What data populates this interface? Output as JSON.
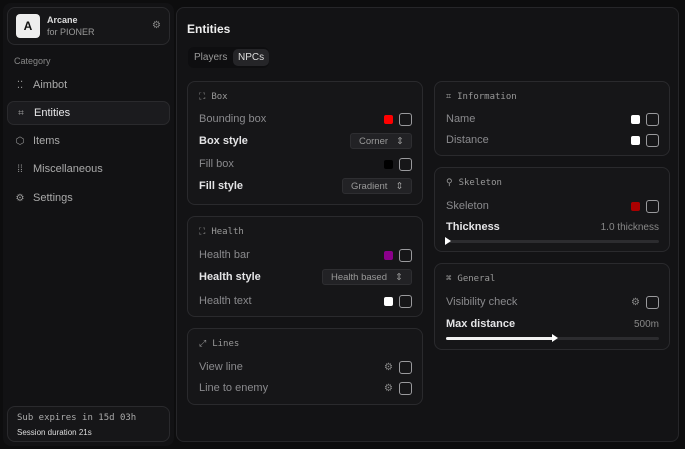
{
  "app": {
    "logo_letter": "A",
    "name": "Arcane",
    "subtitle": "for PIONER"
  },
  "sidebar": {
    "category_label": "Category",
    "items": [
      {
        "label": "Aimbot",
        "icon": "crosshair-icon",
        "active": false
      },
      {
        "label": "Entities",
        "icon": "entities-icon",
        "active": true
      },
      {
        "label": "Items",
        "icon": "cube-icon",
        "active": false
      },
      {
        "label": "Miscellaneous",
        "icon": "misc-icon",
        "active": false
      },
      {
        "label": "Settings",
        "icon": "gear-icon",
        "active": false
      }
    ]
  },
  "footer": {
    "sub": "Sub expires in 15d 03h",
    "session": "Session duration 21s"
  },
  "main": {
    "title": "Entities",
    "tabs": [
      {
        "label": "Players",
        "active": false
      },
      {
        "label": "NPCs",
        "active": true
      }
    ]
  },
  "box": {
    "title": "Box",
    "bounding_box": {
      "label": "Bounding box",
      "color": "#ff0000",
      "checked": false
    },
    "box_style": {
      "label": "Box style",
      "value": "Corner"
    },
    "fill_box": {
      "label": "Fill box",
      "color": "#000000",
      "checked": false
    },
    "fill_style": {
      "label": "Fill style",
      "value": "Gradient"
    }
  },
  "health": {
    "title": "Health",
    "health_bar": {
      "label": "Health bar",
      "color": "#8b008b",
      "checked": false
    },
    "health_style": {
      "label": "Health style",
      "value": "Health based"
    },
    "health_text": {
      "label": "Health text",
      "color": "#ffffff",
      "checked": false
    }
  },
  "lines": {
    "title": "Lines",
    "view_line": {
      "label": "View line",
      "checked": false
    },
    "line_to_enemy": {
      "label": "Line to enemy",
      "checked": false
    }
  },
  "information": {
    "title": "Information",
    "name": {
      "label": "Name",
      "color": "#ffffff",
      "checked": false
    },
    "distance": {
      "label": "Distance",
      "color": "#ffffff",
      "checked": false
    }
  },
  "skeleton": {
    "title": "Skeleton",
    "skeleton": {
      "label": "Skeleton",
      "color": "#aa0000",
      "checked": false
    },
    "thickness": {
      "label": "Thickness",
      "value_text": "1.0 thickness",
      "fraction": 0.0
    }
  },
  "general": {
    "title": "General",
    "visibility_check": {
      "label": "Visibility check",
      "checked": false
    },
    "max_distance": {
      "label": "Max distance",
      "value_text": "500m",
      "fraction": 0.5
    }
  }
}
